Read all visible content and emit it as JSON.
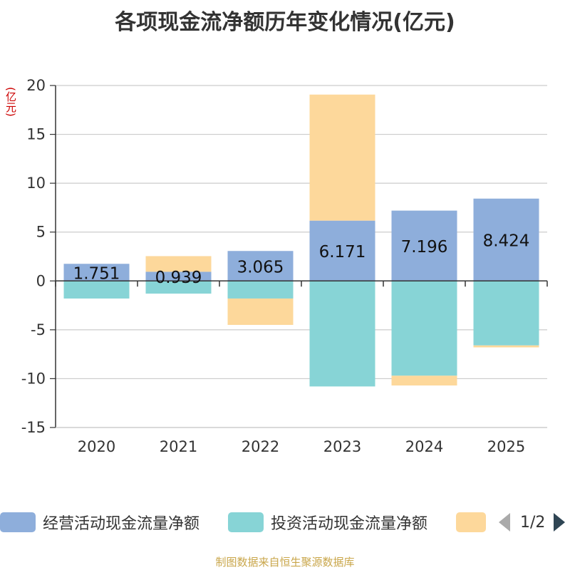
{
  "chart_data": {
    "type": "bar",
    "stacked": true,
    "title": "各项现金流净额历年变化情况(亿元)",
    "ylabel": "(亿元)",
    "xlabel": "",
    "categories": [
      "2020",
      "2021",
      "2022",
      "2023",
      "2024",
      "2025"
    ],
    "ylim": [
      -15,
      20
    ],
    "yticks": [
      20,
      15,
      10,
      5,
      0,
      -5,
      -10,
      -15
    ],
    "ytick_labels": [
      "20",
      "15",
      "10",
      "5",
      "0",
      "-5",
      "-10",
      "-15"
    ],
    "series": [
      {
        "name": "经营活动现金流量净额",
        "color": "#8eaedb",
        "values": [
          1.751,
          0.939,
          3.065,
          6.171,
          7.196,
          8.424
        ],
        "data_labels": [
          "1.751",
          "0.939",
          "3.065",
          "6.171",
          "7.196",
          "8.424"
        ]
      },
      {
        "name": "投资活动现金流量净额",
        "color": "#87d4d6",
        "values": [
          -1.8,
          -1.3,
          -1.8,
          -10.8,
          -9.7,
          -6.6
        ]
      },
      {
        "name": "",
        "color": "#fdd89b",
        "values": [
          0,
          1.6,
          -2.7,
          12.9,
          -1.0,
          -0.2
        ]
      }
    ],
    "legend_position": "bottom",
    "grid": true
  },
  "legend": {
    "pager_text": "1/2",
    "pager_prev_icon": "triangle-left-icon",
    "pager_next_icon": "triangle-right-icon"
  },
  "source_note": "制图数据来自恒生聚源数据库"
}
